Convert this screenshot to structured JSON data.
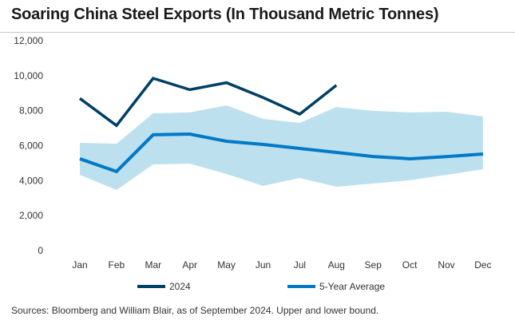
{
  "chart_data": {
    "type": "line",
    "title": "Soaring China Steel Exports (In Thousand Metric Tonnes)",
    "source": "Sources: Bloomberg and William Blair, as of September 2024. Upper and lower bound.",
    "categories": [
      "Jan",
      "Feb",
      "Mar",
      "Apr",
      "May",
      "Jun",
      "Jul",
      "Aug",
      "Sep",
      "Oct",
      "Nov",
      "Dec"
    ],
    "ylim": [
      0,
      12000
    ],
    "yticks": [
      0,
      2000,
      4000,
      6000,
      8000,
      10000,
      12000
    ],
    "ytick_labels": [
      "0",
      "2,000",
      "4,000",
      "6,000",
      "8,000",
      "10,000",
      "12,000"
    ],
    "grid": false,
    "legend_position": "bottom",
    "series": [
      {
        "name": "2024",
        "color": "#003f66",
        "values": [
          8700,
          7150,
          9850,
          9200,
          9600,
          8750,
          7800,
          9450,
          null,
          null,
          null,
          null
        ]
      },
      {
        "name": "5-Year Average",
        "color": "#0079c8",
        "values": [
          5250,
          4520,
          6620,
          6660,
          6250,
          6070,
          5840,
          5610,
          5380,
          5250,
          5370,
          5520
        ]
      }
    ],
    "band": {
      "color": "#bde0ee",
      "upper": [
        6160,
        6110,
        7850,
        7900,
        8300,
        7530,
        7300,
        8210,
        7990,
        7900,
        7940,
        7670
      ],
      "lower": [
        4330,
        3470,
        4930,
        4970,
        4380,
        3700,
        4150,
        3650,
        3830,
        4020,
        4330,
        4650
      ]
    }
  }
}
